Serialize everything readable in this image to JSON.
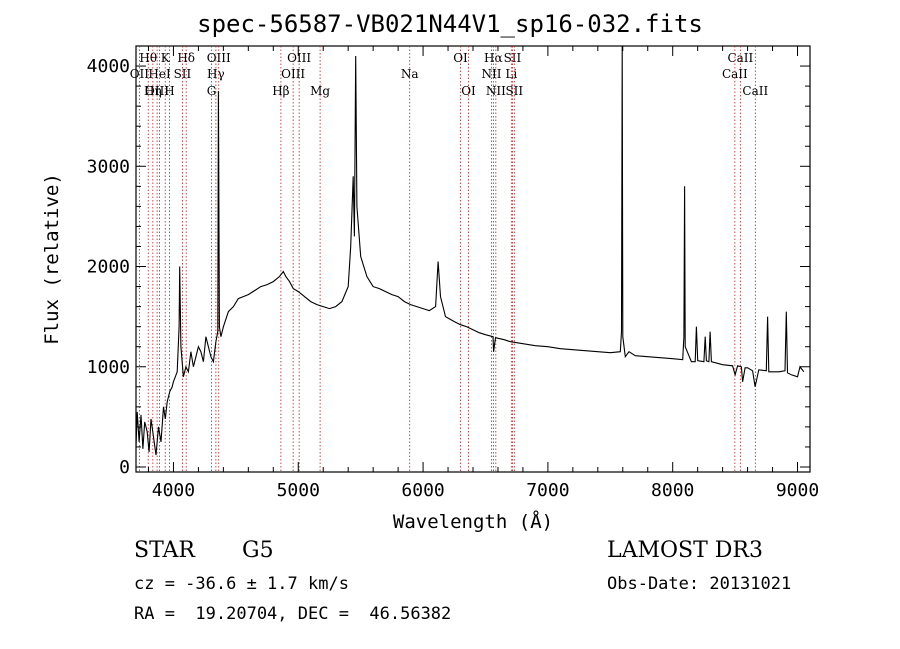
{
  "header": {
    "title": "spec-56587-VB021N44V1_sp16-032.fits"
  },
  "footer": {
    "class_label": "STAR",
    "subclass": "G5",
    "survey": "LAMOST DR3",
    "cz": "cz = -36.6 ± 1.7 km/s",
    "obs_date": "Obs-Date: 20131021",
    "radec": "RA =  19.20704, DEC =  46.56382"
  },
  "chart_data": {
    "type": "line",
    "xlabel": "Wavelength (Å)",
    "ylabel": "Flux (relative)",
    "xlim": [
      3700,
      9100
    ],
    "ylim": [
      -50,
      4200
    ],
    "xticks": [
      4000,
      5000,
      6000,
      7000,
      8000,
      9000
    ],
    "xtick_labels": [
      "4000",
      "5000",
      "6000",
      "7000",
      "8000",
      "9000"
    ],
    "yticks": [
      0,
      1000,
      2000,
      3000,
      4000
    ],
    "ytick_labels": [
      "0",
      "1000",
      "2000",
      "3000",
      "4000"
    ],
    "line_color": "#000000",
    "marker_color": "#b22222",
    "spectrum": [
      [
        3700,
        200
      ],
      [
        3710,
        550
      ],
      [
        3725,
        250
      ],
      [
        3740,
        520
      ],
      [
        3755,
        180
      ],
      [
        3770,
        450
      ],
      [
        3790,
        350
      ],
      [
        3805,
        150
      ],
      [
        3820,
        480
      ],
      [
        3840,
        300
      ],
      [
        3860,
        120
      ],
      [
        3880,
        400
      ],
      [
        3900,
        250
      ],
      [
        3920,
        600
      ],
      [
        3935,
        480
      ],
      [
        3950,
        650
      ],
      [
        3970,
        750
      ],
      [
        3990,
        800
      ],
      [
        4000,
        850
      ],
      [
        4015,
        900
      ],
      [
        4030,
        950
      ],
      [
        4045,
        1400
      ],
      [
        4050,
        2000
      ],
      [
        4060,
        1200
      ],
      [
        4080,
        900
      ],
      [
        4100,
        1000
      ],
      [
        4120,
        950
      ],
      [
        4140,
        1150
      ],
      [
        4160,
        1000
      ],
      [
        4180,
        1100
      ],
      [
        4200,
        1200
      ],
      [
        4220,
        1150
      ],
      [
        4240,
        1050
      ],
      [
        4260,
        1300
      ],
      [
        4280,
        1200
      ],
      [
        4300,
        1100
      ],
      [
        4320,
        1050
      ],
      [
        4340,
        1250
      ],
      [
        4355,
        1350
      ],
      [
        4360,
        3750
      ],
      [
        4368,
        1400
      ],
      [
        4380,
        1300
      ],
      [
        4400,
        1400
      ],
      [
        4440,
        1550
      ],
      [
        4480,
        1600
      ],
      [
        4520,
        1680
      ],
      [
        4560,
        1700
      ],
      [
        4600,
        1720
      ],
      [
        4650,
        1760
      ],
      [
        4700,
        1800
      ],
      [
        4750,
        1820
      ],
      [
        4800,
        1850
      ],
      [
        4850,
        1900
      ],
      [
        4880,
        1950
      ],
      [
        4900,
        1900
      ],
      [
        4930,
        1850
      ],
      [
        4960,
        1780
      ],
      [
        5000,
        1750
      ],
      [
        5050,
        1700
      ],
      [
        5100,
        1650
      ],
      [
        5150,
        1620
      ],
      [
        5200,
        1600
      ],
      [
        5250,
        1580
      ],
      [
        5300,
        1600
      ],
      [
        5350,
        1650
      ],
      [
        5400,
        1800
      ],
      [
        5420,
        2200
      ],
      [
        5440,
        2900
      ],
      [
        5450,
        2300
      ],
      [
        5460,
        4100
      ],
      [
        5470,
        2600
      ],
      [
        5500,
        2100
      ],
      [
        5550,
        1900
      ],
      [
        5600,
        1800
      ],
      [
        5650,
        1780
      ],
      [
        5700,
        1750
      ],
      [
        5750,
        1720
      ],
      [
        5800,
        1700
      ],
      [
        5850,
        1650
      ],
      [
        5900,
        1620
      ],
      [
        5950,
        1600
      ],
      [
        6000,
        1580
      ],
      [
        6050,
        1560
      ],
      [
        6100,
        1600
      ],
      [
        6120,
        2050
      ],
      [
        6140,
        1700
      ],
      [
        6180,
        1500
      ],
      [
        6250,
        1450
      ],
      [
        6300,
        1420
      ],
      [
        6350,
        1400
      ],
      [
        6400,
        1370
      ],
      [
        6450,
        1340
      ],
      [
        6500,
        1320
      ],
      [
        6560,
        1300
      ],
      [
        6565,
        1150
      ],
      [
        6580,
        1290
      ],
      [
        6650,
        1270
      ],
      [
        6700,
        1250
      ],
      [
        6800,
        1230
      ],
      [
        6900,
        1210
      ],
      [
        7000,
        1200
      ],
      [
        7100,
        1180
      ],
      [
        7200,
        1170
      ],
      [
        7300,
        1160
      ],
      [
        7400,
        1150
      ],
      [
        7500,
        1140
      ],
      [
        7580,
        1150
      ],
      [
        7590,
        1350
      ],
      [
        7595,
        4200
      ],
      [
        7600,
        1300
      ],
      [
        7620,
        1100
      ],
      [
        7650,
        1150
      ],
      [
        7700,
        1110
      ],
      [
        7800,
        1100
      ],
      [
        7900,
        1090
      ],
      [
        8000,
        1080
      ],
      [
        8080,
        1070
      ],
      [
        8090,
        1300
      ],
      [
        8095,
        2800
      ],
      [
        8100,
        1200
      ],
      [
        8150,
        1050
      ],
      [
        8180,
        1050
      ],
      [
        8190,
        1400
      ],
      [
        8200,
        1060
      ],
      [
        8250,
        1050
      ],
      [
        8260,
        1300
      ],
      [
        8270,
        1060
      ],
      [
        8290,
        1050
      ],
      [
        8300,
        1350
      ],
      [
        8310,
        1050
      ],
      [
        8400,
        1020
      ],
      [
        8480,
        1010
      ],
      [
        8500,
        920
      ],
      [
        8520,
        1010
      ],
      [
        8550,
        1000
      ],
      [
        8560,
        850
      ],
      [
        8580,
        990
      ],
      [
        8600,
        990
      ],
      [
        8640,
        960
      ],
      [
        8660,
        800
      ],
      [
        8690,
        970
      ],
      [
        8750,
        960
      ],
      [
        8760,
        1500
      ],
      [
        8770,
        950
      ],
      [
        8850,
        950
      ],
      [
        8900,
        960
      ],
      [
        8910,
        1550
      ],
      [
        8920,
        940
      ],
      [
        8950,
        920
      ],
      [
        9000,
        900
      ],
      [
        9020,
        1000
      ],
      [
        9050,
        950
      ]
    ],
    "line_markers": [
      {
        "label": "Hθ",
        "x": 3798,
        "row": 1
      },
      {
        "label": "OII",
        "x": 3727,
        "row": 2
      },
      {
        "label": "OIII",
        "x": 3869,
        "row": 3
      },
      {
        "label": "K",
        "x": 3934,
        "row": 1
      },
      {
        "label": "HeI",
        "x": 3889,
        "row": 2
      },
      {
        "label": "Hη",
        "x": 3835,
        "row": 3
      },
      {
        "label": "SII",
        "x": 4072,
        "row": 2
      },
      {
        "label": "H",
        "x": 3968,
        "row": 3
      },
      {
        "label": "Hδ",
        "x": 4102,
        "row": 1
      },
      {
        "label": "OIII",
        "x": 4363,
        "row": 1
      },
      {
        "label": "Hγ",
        "x": 4340,
        "row": 2
      },
      {
        "label": "G",
        "x": 4305,
        "row": 3
      },
      {
        "label": "Hβ",
        "x": 4861,
        "row": 3
      },
      {
        "label": "OIII",
        "x": 5007,
        "row": 1
      },
      {
        "label": "OIII",
        "x": 4959,
        "row": 2
      },
      {
        "label": "Mg",
        "x": 5175,
        "row": 3
      },
      {
        "label": "Na",
        "x": 5893,
        "row": 2
      },
      {
        "label": "OI",
        "x": 6300,
        "row": 1
      },
      {
        "label": "OI",
        "x": 6364,
        "row": 3
      },
      {
        "label": "Hα",
        "x": 6563,
        "row": 1
      },
      {
        "label": "SII",
        "x": 6716,
        "row": 1
      },
      {
        "label": "NII",
        "x": 6548,
        "row": 2
      },
      {
        "label": "Li",
        "x": 6707,
        "row": 2
      },
      {
        "label": "NII",
        "x": 6583,
        "row": 3
      },
      {
        "label": "SII",
        "x": 6731,
        "row": 3
      },
      {
        "label": "CaII",
        "x": 8542,
        "row": 1
      },
      {
        "label": "CaII",
        "x": 8498,
        "row": 2
      },
      {
        "label": "CaII",
        "x": 8662,
        "row": 3
      }
    ]
  }
}
